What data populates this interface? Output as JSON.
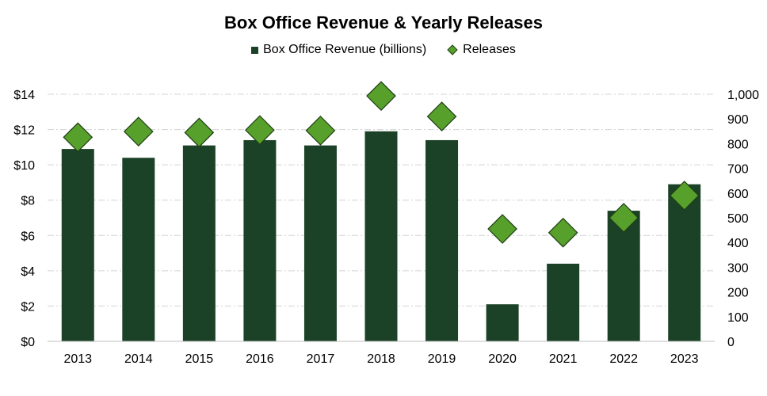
{
  "chart_data": {
    "type": "bar",
    "title": "Box Office Revenue & Yearly Releases",
    "categories": [
      "2013",
      "2014",
      "2015",
      "2016",
      "2017",
      "2018",
      "2019",
      "2020",
      "2021",
      "2022",
      "2023"
    ],
    "series": [
      {
        "name": "Box Office Revenue (billions)",
        "type": "bar",
        "axis": "left",
        "values": [
          10.9,
          10.4,
          11.1,
          11.4,
          11.1,
          11.9,
          11.4,
          2.1,
          4.4,
          7.4,
          8.9
        ]
      },
      {
        "name": "Releases",
        "type": "scatter",
        "marker": "diamond",
        "axis": "right",
        "values": [
          826,
          849,
          845,
          855,
          853,
          993,
          910,
          455,
          440,
          500,
          590
        ]
      }
    ],
    "y_left": {
      "ylim": [
        0,
        14
      ],
      "ticks": [
        "$0",
        "$2",
        "$4",
        "$6",
        "$8",
        "$10",
        "$12",
        "$14"
      ]
    },
    "y_right": {
      "ylim": [
        0,
        1000
      ],
      "ticks": [
        "0",
        "100",
        "200",
        "300",
        "400",
        "500",
        "600",
        "700",
        "800",
        "900",
        "1,000"
      ]
    },
    "grid": true,
    "legend_position": "top",
    "colors": {
      "bar": "#1b4227",
      "diamond_fill": "#56a02b",
      "diamond_stroke": "#1f3d12",
      "grid": "#d4d4d4"
    }
  }
}
